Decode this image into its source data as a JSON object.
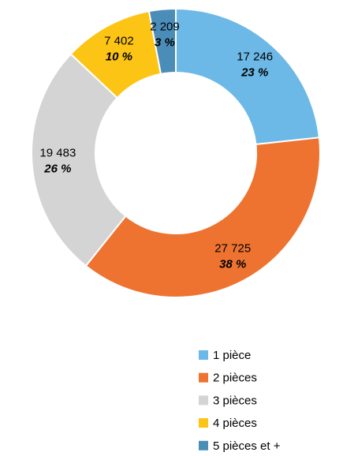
{
  "chart_data": {
    "type": "donut",
    "categories": [
      "1 pièce",
      "2 pièces",
      "3 pièces",
      "4 pièces",
      "5 pièces et +"
    ],
    "values": [
      17246,
      27725,
      19483,
      7402,
      2209
    ],
    "value_labels": [
      "17 246",
      "27 725",
      "19 483",
      "7 402",
      "2 209"
    ],
    "percent_values": [
      23,
      38,
      26,
      10,
      3
    ],
    "percent_labels": [
      "23 %",
      "38 %",
      "26 %",
      "10 %",
      "3 %"
    ],
    "colors": [
      "#6cb8e6",
      "#ee7330",
      "#d4d4d4",
      "#fcc414",
      "#4a8db8"
    ],
    "legend": "bottom"
  }
}
